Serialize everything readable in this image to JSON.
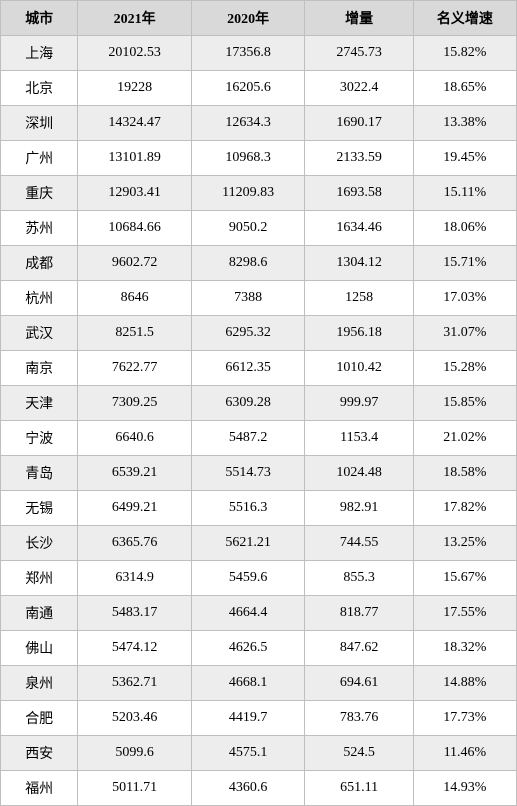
{
  "table": {
    "columns": [
      "城市",
      "2021年",
      "2020年",
      "增量",
      "名义增速"
    ],
    "rows": [
      [
        "上海",
        "20102.53",
        "17356.8",
        "2745.73",
        "15.82%"
      ],
      [
        "北京",
        "19228",
        "16205.6",
        "3022.4",
        "18.65%"
      ],
      [
        "深圳",
        "14324.47",
        "12634.3",
        "1690.17",
        "13.38%"
      ],
      [
        "广州",
        "13101.89",
        "10968.3",
        "2133.59",
        "19.45%"
      ],
      [
        "重庆",
        "12903.41",
        "11209.83",
        "1693.58",
        "15.11%"
      ],
      [
        "苏州",
        "10684.66",
        "9050.2",
        "1634.46",
        "18.06%"
      ],
      [
        "成都",
        "9602.72",
        "8298.6",
        "1304.12",
        "15.71%"
      ],
      [
        "杭州",
        "8646",
        "7388",
        "1258",
        "17.03%"
      ],
      [
        "武汉",
        "8251.5",
        "6295.32",
        "1956.18",
        "31.07%"
      ],
      [
        "南京",
        "7622.77",
        "6612.35",
        "1010.42",
        "15.28%"
      ],
      [
        "天津",
        "7309.25",
        "6309.28",
        "999.97",
        "15.85%"
      ],
      [
        "宁波",
        "6640.6",
        "5487.2",
        "1153.4",
        "21.02%"
      ],
      [
        "青岛",
        "6539.21",
        "5514.73",
        "1024.48",
        "18.58%"
      ],
      [
        "无锡",
        "6499.21",
        "5516.3",
        "982.91",
        "17.82%"
      ],
      [
        "长沙",
        "6365.76",
        "5621.21",
        "744.55",
        "13.25%"
      ],
      [
        "郑州",
        "6314.9",
        "5459.6",
        "855.3",
        "15.67%"
      ],
      [
        "南通",
        "5483.17",
        "4664.4",
        "818.77",
        "17.55%"
      ],
      [
        "佛山",
        "5474.12",
        "4626.5",
        "847.62",
        "18.32%"
      ],
      [
        "泉州",
        "5362.71",
        "4668.1",
        "694.61",
        "14.88%"
      ],
      [
        "合肥",
        "5203.46",
        "4419.7",
        "783.76",
        "17.73%"
      ],
      [
        "西安",
        "5099.6",
        "4575.1",
        "524.5",
        "11.46%"
      ],
      [
        "福州",
        "5011.71",
        "4360.6",
        "651.11",
        "14.93%"
      ]
    ],
    "header_bg": "#d9d9d9",
    "row_odd_bg": "#ededed",
    "row_even_bg": "#ffffff",
    "border_color": "#bfbfbf",
    "font_family": "SimSun",
    "font_size_pt": 11
  }
}
